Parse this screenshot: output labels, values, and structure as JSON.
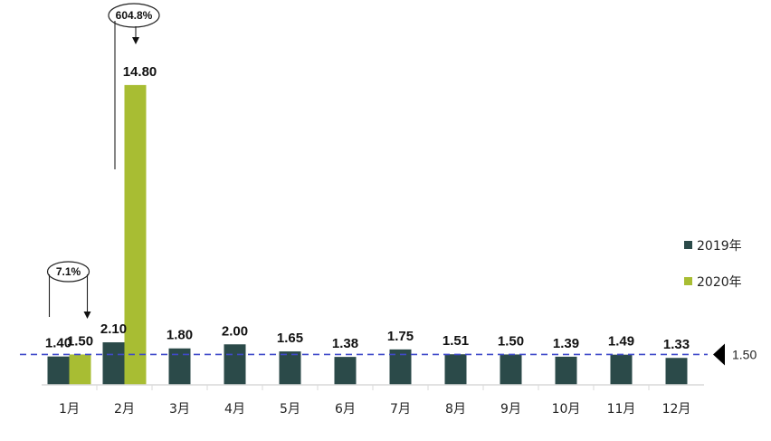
{
  "chart_data": {
    "type": "bar",
    "categories": [
      "1月",
      "2月",
      "3月",
      "4月",
      "5月",
      "6月",
      "7月",
      "8月",
      "9月",
      "10月",
      "11月",
      "12月"
    ],
    "series": [
      {
        "name": "2019年",
        "color": "#2b4a49",
        "values": [
          1.4,
          2.1,
          1.8,
          2.0,
          1.65,
          1.38,
          1.75,
          1.51,
          1.5,
          1.39,
          1.49,
          1.33
        ],
        "labels": [
          "1.40",
          "2.10",
          "1.80",
          "2.00",
          "1.65",
          "1.38",
          "1.75",
          "1.51",
          "1.50",
          "1.39",
          "1.49",
          "1.33"
        ]
      },
      {
        "name": "2020年",
        "color": "#a8bd33",
        "values": [
          1.5,
          14.8,
          null,
          null,
          null,
          null,
          null,
          null,
          null,
          null,
          null,
          null
        ],
        "labels": [
          "1.50",
          "14.80",
          "",
          "",
          "",
          "",
          "",
          "",
          "",
          "",
          "",
          ""
        ]
      }
    ],
    "reference_line": {
      "value": 1.5,
      "label": "1.50",
      "color": "#3f49c9",
      "style": "dashed"
    },
    "annotations": [
      {
        "category": "1月",
        "text": "7.1%"
      },
      {
        "category": "2月",
        "text": "604.8%"
      }
    ],
    "legend": {
      "position": "right"
    },
    "ylim": [
      0,
      15.6
    ],
    "grid": false
  }
}
